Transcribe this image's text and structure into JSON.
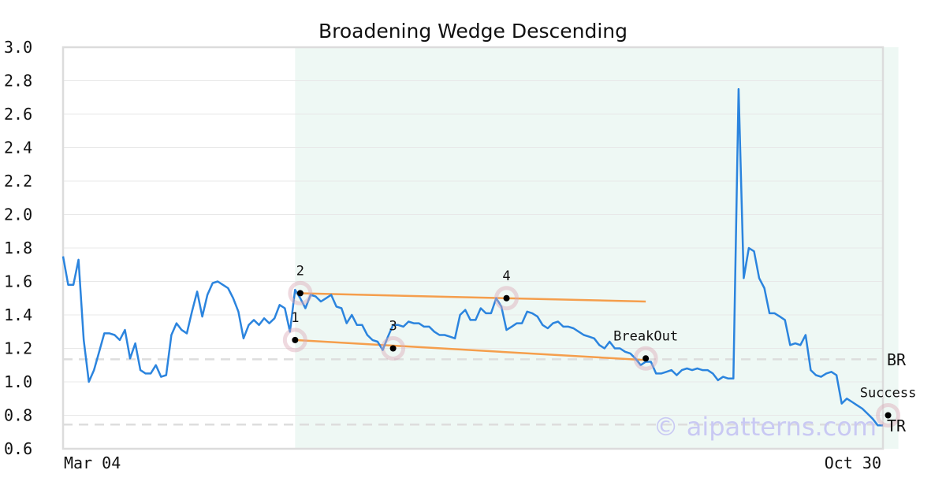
{
  "chart_data": {
    "type": "line",
    "title": "Broadening Wedge Descending",
    "xlabel": "",
    "ylabel": "",
    "ylim": [
      0.6,
      3.0
    ],
    "y_ticks": [
      "3.0",
      "2.8",
      "2.6",
      "2.4",
      "2.2",
      "2.0",
      "1.8",
      "1.6",
      "1.4",
      "1.2",
      "1.0",
      "0.8",
      "0.6"
    ],
    "x_tick_labels": [
      "Mar 04",
      "Oct 30"
    ],
    "grid": "horizontal",
    "series": [
      {
        "color": "#2b84de",
        "values": [
          1.75,
          1.58,
          1.58,
          1.73,
          1.25,
          1.0,
          1.07,
          1.18,
          1.29,
          1.29,
          1.28,
          1.25,
          1.31,
          1.14,
          1.23,
          1.07,
          1.05,
          1.05,
          1.1,
          1.03,
          1.04,
          1.28,
          1.35,
          1.31,
          1.29,
          1.42,
          1.54,
          1.39,
          1.52,
          1.59,
          1.6,
          1.58,
          1.56,
          1.5,
          1.42,
          1.26,
          1.34,
          1.37,
          1.34,
          1.38,
          1.35,
          1.38,
          1.46,
          1.44,
          1.3,
          1.55,
          1.5,
          1.44,
          1.52,
          1.51,
          1.48,
          1.5,
          1.52,
          1.45,
          1.44,
          1.35,
          1.4,
          1.34,
          1.34,
          1.28,
          1.25,
          1.24,
          1.19,
          1.27,
          1.34,
          1.34,
          1.33,
          1.36,
          1.35,
          1.35,
          1.33,
          1.33,
          1.3,
          1.28,
          1.28,
          1.27,
          1.26,
          1.4,
          1.43,
          1.37,
          1.37,
          1.44,
          1.41,
          1.41,
          1.5,
          1.45,
          1.31,
          1.33,
          1.35,
          1.35,
          1.42,
          1.41,
          1.39,
          1.34,
          1.32,
          1.35,
          1.36,
          1.33,
          1.33,
          1.32,
          1.3,
          1.28,
          1.27,
          1.26,
          1.22,
          1.2,
          1.24,
          1.2,
          1.2,
          1.18,
          1.17,
          1.14,
          1.1,
          1.12,
          1.12,
          1.05,
          1.05,
          1.06,
          1.07,
          1.04,
          1.07,
          1.08,
          1.07,
          1.08,
          1.07,
          1.07,
          1.05,
          1.01,
          1.03,
          1.02,
          1.02,
          2.75,
          1.62,
          1.8,
          1.78,
          1.62,
          1.56,
          1.41,
          1.41,
          1.39,
          1.37,
          1.22,
          1.23,
          1.22,
          1.28,
          1.07,
          1.04,
          1.03,
          1.05,
          1.06,
          1.04,
          0.87,
          0.9,
          0.88,
          0.86,
          0.84,
          0.81,
          0.78,
          0.74,
          0.74
        ]
      }
    ],
    "shaded_region": {
      "x_start": 45,
      "x_end": 162,
      "color": "#eef8f4"
    },
    "trendlines": [
      {
        "color": "#f59e4c",
        "points": [
          [
            45,
            1.53
          ],
          [
            113,
            1.48
          ]
        ]
      },
      {
        "color": "#f59e4c",
        "points": [
          [
            45,
            1.25
          ],
          [
            113,
            1.13
          ]
        ]
      }
    ],
    "pattern_points": [
      {
        "label": "1",
        "x": 45,
        "y": 1.25
      },
      {
        "label": "2",
        "x": 46,
        "y": 1.53
      },
      {
        "label": "3",
        "x": 64,
        "y": 1.2
      },
      {
        "label": "4",
        "x": 86,
        "y": 1.5
      },
      {
        "label": "BreakOut",
        "x": 113,
        "y": 1.14
      },
      {
        "label": "Success",
        "x": 160,
        "y": 0.8
      }
    ],
    "reference_lines": [
      {
        "label": "BR",
        "y": 1.135
      },
      {
        "label": "TR",
        "y": 0.745
      }
    ],
    "watermark": "© aipatterns.com"
  }
}
